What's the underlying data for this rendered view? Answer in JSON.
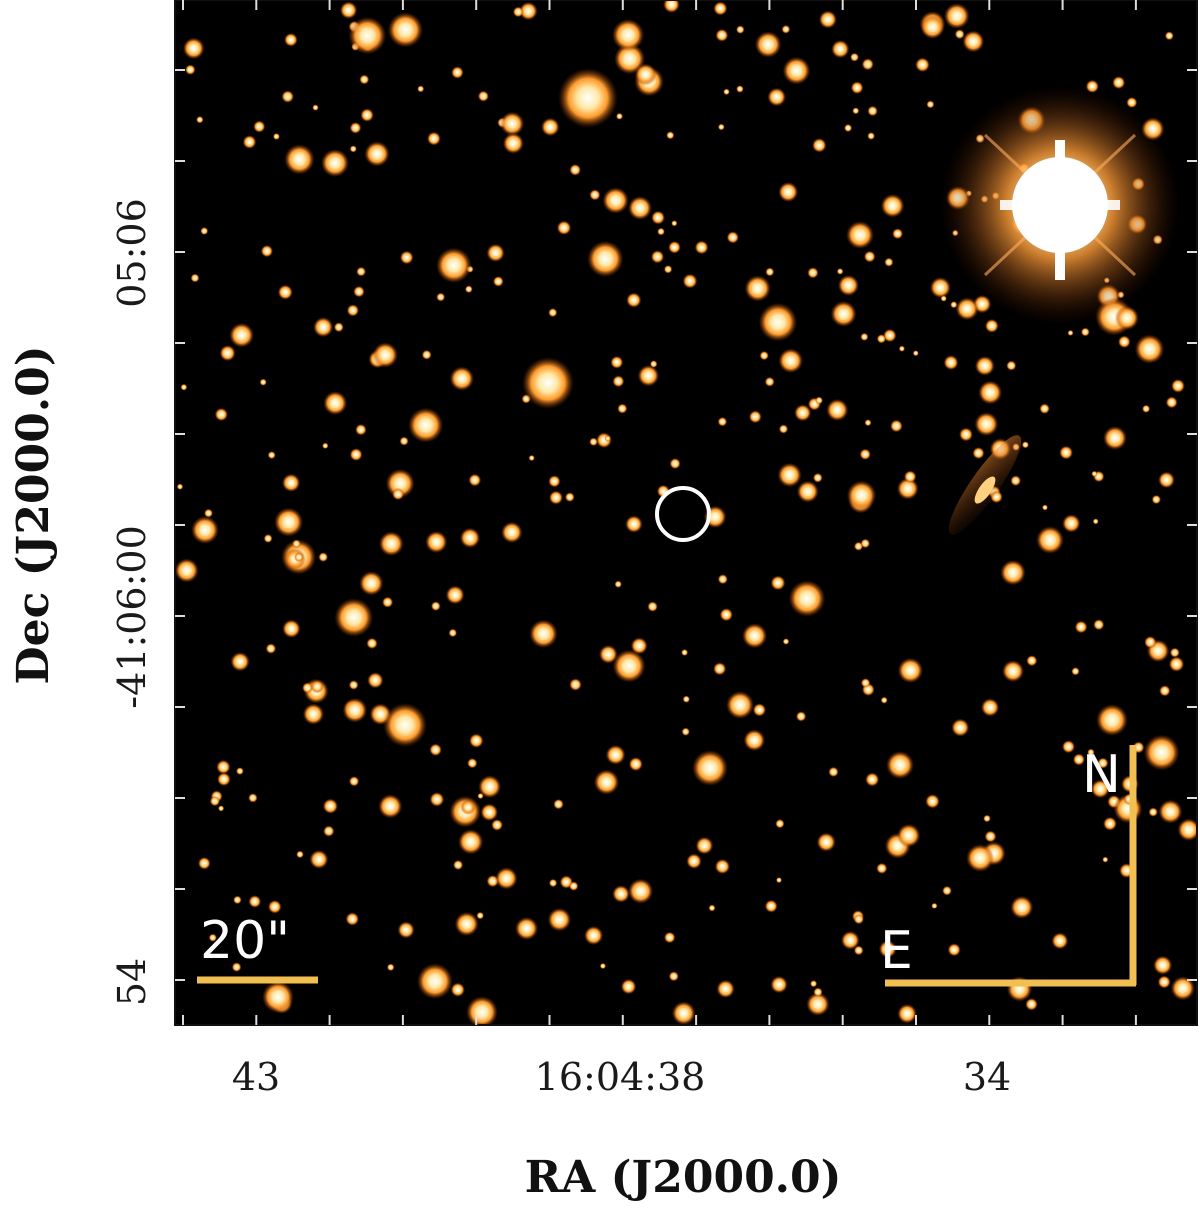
{
  "figure": {
    "x_axis": {
      "title": "RA (J2000.0)",
      "tick_labels": [
        "43",
        "16:04:38",
        "34"
      ]
    },
    "y_axis": {
      "title": "Dec (J2000.0)",
      "tick_labels": [
        "54",
        "-41:06:00",
        "05:06"
      ]
    },
    "scale_bar": {
      "label": "20\"",
      "color": "#f2c052"
    },
    "compass": {
      "north_label": "N",
      "east_label": "E",
      "color": "#f2c052"
    },
    "target_marker": {
      "shape": "circle",
      "color": "#ffffff"
    },
    "colormap": {
      "background": "#000000",
      "faint": "#7a2a00",
      "mid": "#ff8a1a",
      "bright": "#ffffff"
    }
  }
}
